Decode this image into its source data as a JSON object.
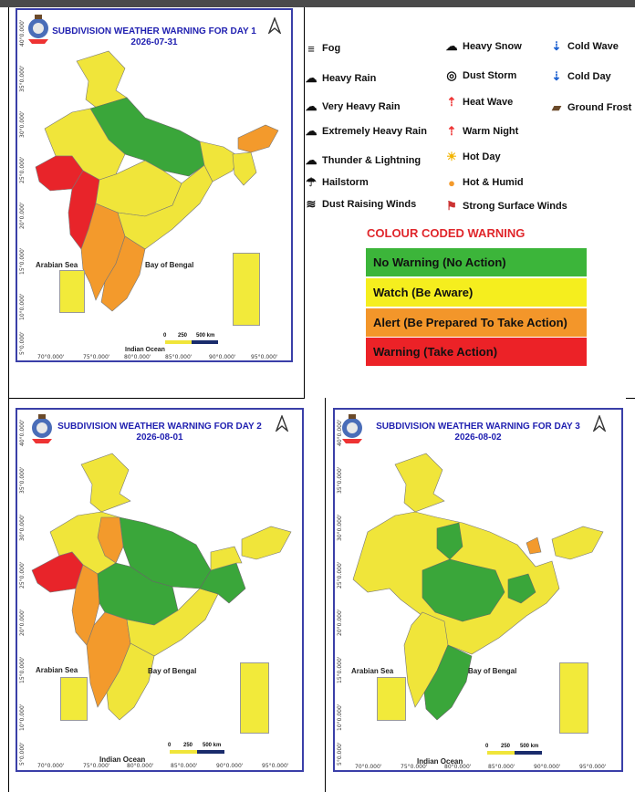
{
  "panels": [
    {
      "title": "SUBDIVISION WEATHER WARNING FOR DAY 1",
      "date": "2026-07-31"
    },
    {
      "title": "SUBDIVISION WEATHER WARNING FOR DAY 2",
      "date": "2026-08-01"
    },
    {
      "title": "SUBDIVISION WEATHER WARNING FOR DAY 3",
      "date": "2026-08-02"
    }
  ],
  "map_labels": {
    "arabian_sea": "Arabian Sea",
    "bay_of_bengal": "Bay of Bengal",
    "indian_ocean": "Indian Ocean"
  },
  "scale": {
    "zero": "0",
    "mid": "250",
    "end": "500 km"
  },
  "lat_ticks": [
    "40°0.000'",
    "35°0.000'",
    "30°0.000'",
    "25°0.000'",
    "20°0.000'",
    "15°0.000'",
    "10°0.000'",
    "5°0.000'"
  ],
  "lon_ticks": [
    "70°0.000'",
    "75°0.000'",
    "80°0.000'",
    "85°0.000'",
    "90°0.000'",
    "95°0.000'"
  ],
  "legend": {
    "left": [
      {
        "label": "Fog",
        "icon": "fog-icon",
        "glyph": "≡"
      },
      {
        "label": "Heavy Rain",
        "icon": "heavy-rain-icon",
        "glyph": "☁"
      },
      {
        "label": "Very Heavy Rain",
        "icon": "very-heavy-rain-icon",
        "glyph": "☁"
      },
      {
        "label": "Extremely Heavy Rain",
        "icon": "extremely-heavy-rain-icon",
        "glyph": "☁"
      },
      {
        "label": "Thunder & Lightning",
        "icon": "thunder-lightning-icon",
        "glyph": "☁"
      },
      {
        "label": "Hailstorm",
        "icon": "hailstorm-icon",
        "glyph": "☂"
      },
      {
        "label": "Dust Raising Winds",
        "icon": "dust-raising-winds-icon",
        "glyph": "≋"
      }
    ],
    "middle": [
      {
        "label": "Heavy Snow",
        "icon": "heavy-snow-icon",
        "glyph": "☁"
      },
      {
        "label": "Dust Storm",
        "icon": "dust-storm-icon",
        "glyph": "◎"
      },
      {
        "label": "Heat Wave",
        "icon": "heat-wave-icon",
        "glyph": "⇡"
      },
      {
        "label": "Warm Night",
        "icon": "warm-night-icon",
        "glyph": "⇡"
      },
      {
        "label": "Hot Day",
        "icon": "hot-day-icon",
        "glyph": "☀"
      },
      {
        "label": "Hot & Humid",
        "icon": "hot-humid-icon",
        "glyph": "●"
      },
      {
        "label": "Strong Surface Winds",
        "icon": "strong-surface-winds-icon",
        "glyph": "⚑"
      }
    ],
    "right": [
      {
        "label": "Cold Wave",
        "icon": "cold-wave-icon",
        "glyph": "⇣"
      },
      {
        "label": "Cold Day",
        "icon": "cold-day-icon",
        "glyph": "⇣"
      },
      {
        "label": "Ground Frost",
        "icon": "ground-frost-icon",
        "glyph": "▰"
      }
    ]
  },
  "colour_coded": {
    "title": "COLOUR CODED WARNING",
    "levels": [
      {
        "label": "No Warning (No Action)",
        "color": "#3cb53a"
      },
      {
        "label": "Watch (Be Aware)",
        "color": "#f5ee1e"
      },
      {
        "label": "Alert (Be Prepared To Take Action)",
        "color": "#f3962a"
      },
      {
        "label": "Warning (Take Action)",
        "color": "#ec2227"
      }
    ]
  },
  "colors": {
    "green": "#3aa63a",
    "yellow": "#f0e53a",
    "orange": "#f39a2c",
    "red": "#e8242a",
    "title_blue": "#1f1fb0",
    "frame": "#3a3fa8"
  }
}
